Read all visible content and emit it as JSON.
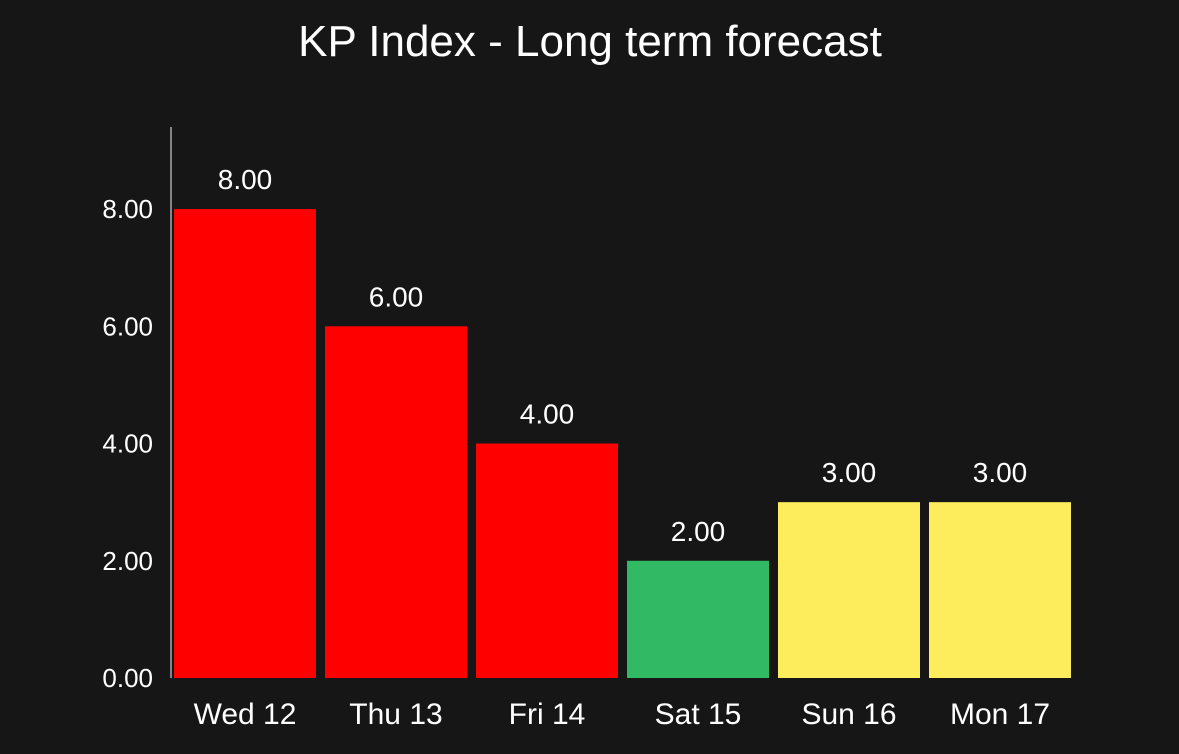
{
  "chart_data": {
    "type": "bar",
    "title": "KP Index - Long term forecast",
    "categories": [
      "Wed 12",
      "Thu 13",
      "Fri 14",
      "Sat 15",
      "Sun 16",
      "Mon 17"
    ],
    "values": [
      8,
      6,
      4,
      2,
      3,
      3
    ],
    "data_labels": [
      "8.00",
      "6.00",
      "4.00",
      "2.00",
      "3.00",
      "3.00"
    ],
    "bar_colors": [
      "#ff0000",
      "#ff0000",
      "#ff0000",
      "#32b964",
      "#fdec5c",
      "#fdec5c"
    ],
    "yticks": [
      0,
      2,
      4,
      6,
      8
    ],
    "ytick_labels": [
      "0.00",
      "2.00",
      "4.00",
      "6.00",
      "8.00"
    ],
    "ylim": [
      0,
      9.4
    ],
    "xlabel": "",
    "ylabel": "",
    "grid": false,
    "background": "#161616"
  }
}
